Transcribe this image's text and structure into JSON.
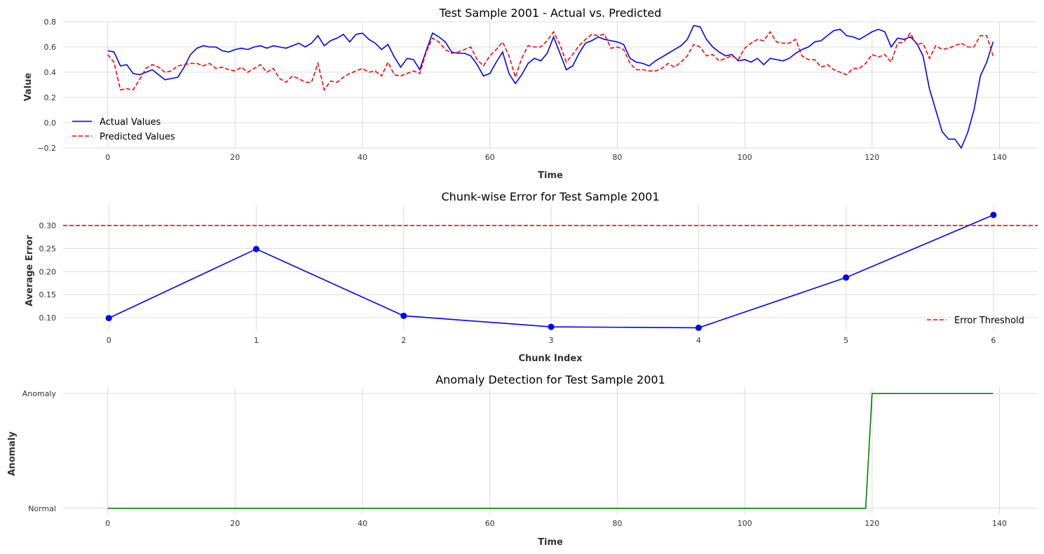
{
  "colors": {
    "actual": "#0000ff",
    "predicted": "#ff0000",
    "threshold": "#ff0000",
    "chunk": "#0000ff",
    "anomaly": "#008000",
    "grid": "#dcdcdc"
  },
  "chart_data": [
    {
      "type": "line",
      "title": "Test Sample 2001 - Actual vs. Predicted",
      "xlabel": "Time",
      "ylabel": "Value",
      "xlim": [
        -7,
        146
      ],
      "ylim": [
        -0.2,
        0.8
      ],
      "xticks": [
        0,
        20,
        40,
        60,
        80,
        100,
        120,
        140
      ],
      "yticks": [
        -0.2,
        0.0,
        0.2,
        0.4,
        0.6,
        0.8
      ],
      "ytick_labels": [
        "−0.2",
        "0.0",
        "0.2",
        "0.4",
        "0.6",
        "0.8"
      ],
      "grid": true,
      "legend_position": "lower-left",
      "series": [
        {
          "name": "Actual Values",
          "style": "solid",
          "values": [
            0.57,
            0.56,
            0.45,
            0.46,
            0.39,
            0.38,
            0.4,
            0.42,
            0.38,
            0.34,
            0.35,
            0.36,
            0.44,
            0.54,
            0.59,
            0.61,
            0.6,
            0.6,
            0.57,
            0.56,
            0.58,
            0.59,
            0.58,
            0.6,
            0.61,
            0.59,
            0.61,
            0.6,
            0.59,
            0.61,
            0.63,
            0.6,
            0.63,
            0.69,
            0.61,
            0.65,
            0.67,
            0.7,
            0.64,
            0.7,
            0.71,
            0.66,
            0.63,
            0.58,
            0.62,
            0.52,
            0.44,
            0.51,
            0.5,
            0.42,
            0.57,
            0.71,
            0.68,
            0.64,
            0.56,
            0.55,
            0.55,
            0.53,
            0.46,
            0.37,
            0.39,
            0.48,
            0.56,
            0.39,
            0.31,
            0.38,
            0.47,
            0.51,
            0.49,
            0.55,
            0.68,
            0.55,
            0.42,
            0.45,
            0.55,
            0.63,
            0.65,
            0.68,
            0.66,
            0.65,
            0.64,
            0.62,
            0.51,
            0.48,
            0.47,
            0.45,
            0.49,
            0.52,
            0.55,
            0.58,
            0.61,
            0.66,
            0.77,
            0.76,
            0.66,
            0.6,
            0.56,
            0.53,
            0.54,
            0.49,
            0.5,
            0.48,
            0.51,
            0.46,
            0.51,
            0.5,
            0.49,
            0.51,
            0.55,
            0.58,
            0.6,
            0.64,
            0.65,
            0.69,
            0.73,
            0.74,
            0.69,
            0.68,
            0.66,
            0.69,
            0.72,
            0.74,
            0.72,
            0.6,
            0.67,
            0.66,
            0.68,
            0.63,
            0.53,
            0.27,
            0.1,
            -0.07,
            -0.13,
            -0.13,
            -0.2,
            -0.08,
            0.1,
            0.37,
            0.48,
            0.64
          ]
        },
        {
          "name": "Predicted Values",
          "style": "dashed",
          "values": [
            0.54,
            0.48,
            0.26,
            0.27,
            0.26,
            0.34,
            0.43,
            0.46,
            0.44,
            0.4,
            0.41,
            0.45,
            0.46,
            0.47,
            0.47,
            0.45,
            0.47,
            0.43,
            0.44,
            0.42,
            0.41,
            0.44,
            0.4,
            0.43,
            0.46,
            0.4,
            0.43,
            0.35,
            0.32,
            0.37,
            0.35,
            0.32,
            0.32,
            0.47,
            0.26,
            0.33,
            0.32,
            0.36,
            0.39,
            0.41,
            0.43,
            0.4,
            0.41,
            0.37,
            0.48,
            0.38,
            0.37,
            0.39,
            0.41,
            0.39,
            0.56,
            0.67,
            0.64,
            0.58,
            0.55,
            0.56,
            0.58,
            0.6,
            0.5,
            0.45,
            0.53,
            0.58,
            0.64,
            0.53,
            0.36,
            0.51,
            0.61,
            0.6,
            0.6,
            0.65,
            0.72,
            0.62,
            0.48,
            0.54,
            0.61,
            0.66,
            0.7,
            0.69,
            0.7,
            0.59,
            0.6,
            0.58,
            0.47,
            0.42,
            0.42,
            0.41,
            0.41,
            0.43,
            0.47,
            0.44,
            0.48,
            0.53,
            0.62,
            0.6,
            0.53,
            0.54,
            0.49,
            0.51,
            0.53,
            0.5,
            0.59,
            0.63,
            0.66,
            0.65,
            0.72,
            0.64,
            0.63,
            0.63,
            0.66,
            0.53,
            0.5,
            0.5,
            0.44,
            0.46,
            0.42,
            0.4,
            0.38,
            0.43,
            0.43,
            0.47,
            0.54,
            0.52,
            0.54,
            0.48,
            0.63,
            0.64,
            0.71,
            0.62,
            0.63,
            0.51,
            0.61,
            0.58,
            0.59,
            0.61,
            0.63,
            0.6,
            0.6,
            0.69,
            0.69,
            0.53
          ]
        }
      ]
    },
    {
      "type": "line",
      "title": "Chunk-wise Error for Test Sample 2001",
      "xlabel": "Chunk Index",
      "ylabel": "Average Error",
      "xlim": [
        -0.31,
        6.3
      ],
      "ylim": [
        0.071,
        0.345
      ],
      "xticks": [
        0,
        1,
        2,
        3,
        4,
        5,
        6
      ],
      "yticks": [
        0.1,
        0.15,
        0.2,
        0.25,
        0.3
      ],
      "ytick_labels": [
        "0.10",
        "0.15",
        "0.20",
        "0.25",
        "0.30"
      ],
      "grid": true,
      "legend_position": "lower-right",
      "series": [
        {
          "name": "",
          "style": "solid-markers",
          "x": [
            0,
            1,
            2,
            3,
            4,
            5,
            6
          ],
          "values": [
            0.099,
            0.249,
            0.104,
            0.08,
            0.078,
            0.187,
            0.323
          ]
        }
      ],
      "threshold": {
        "name": "Error Threshold",
        "value": 0.3
      }
    },
    {
      "type": "line",
      "title": "Anomaly Detection for Test Sample 2001",
      "xlabel": "Time",
      "ylabel": "Anomaly",
      "xlim": [
        -7,
        146
      ],
      "ylim": [
        -0.05,
        1.05
      ],
      "xticks": [
        0,
        20,
        40,
        60,
        80,
        100,
        120,
        140
      ],
      "yticks": [
        0,
        1
      ],
      "ytick_labels": [
        "Normal",
        "Anomaly"
      ],
      "grid": true,
      "series": [
        {
          "name": "",
          "style": "solid",
          "x": [
            0,
            119,
            120,
            139
          ],
          "values": [
            0,
            0,
            1,
            1
          ]
        }
      ]
    }
  ]
}
